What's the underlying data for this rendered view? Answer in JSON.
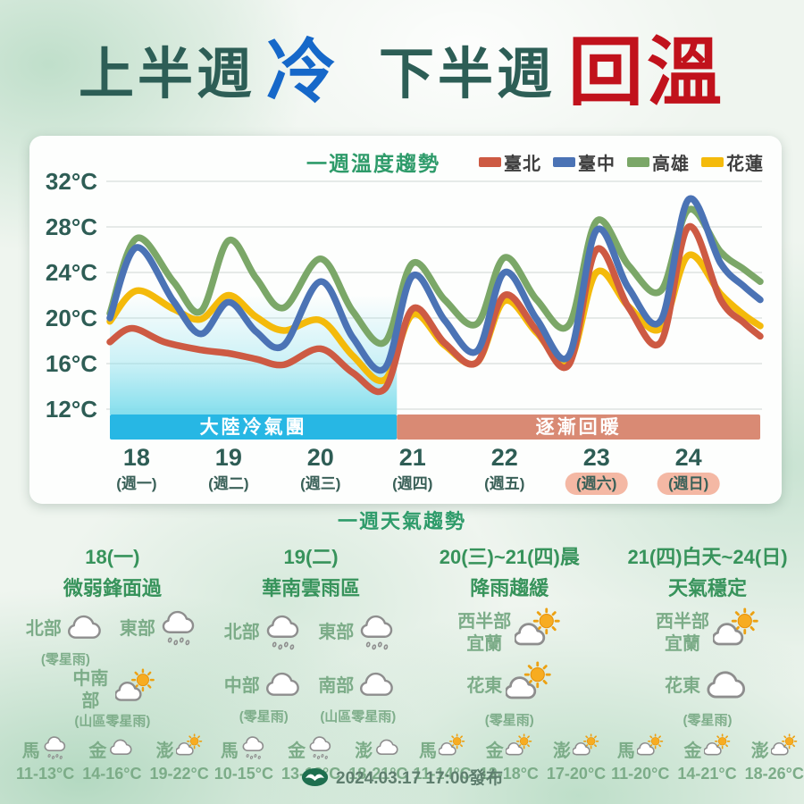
{
  "title": {
    "part1": "上半週",
    "cold": "冷",
    "part2": "下半週",
    "warm": "回溫"
  },
  "chart_data": {
    "type": "line",
    "title": "一週溫度趨勢",
    "ylabel": "°C",
    "ylim": [
      12,
      32
    ],
    "xlim": [
      17.71,
      24.78
    ],
    "y_ticks": [
      32,
      28,
      24,
      20,
      16,
      12
    ],
    "x_ticks": [
      {
        "t": 18,
        "day": "18",
        "week": "(週一)",
        "highlight": false
      },
      {
        "t": 19,
        "day": "19",
        "week": "(週二)",
        "highlight": false
      },
      {
        "t": 20,
        "day": "20",
        "week": "(週三)",
        "highlight": false
      },
      {
        "t": 21,
        "day": "21",
        "week": "(週四)",
        "highlight": false
      },
      {
        "t": 22,
        "day": "22",
        "week": "(週五)",
        "highlight": false
      },
      {
        "t": 23,
        "day": "23",
        "week": "(週六)",
        "highlight": true
      },
      {
        "t": 24,
        "day": "24",
        "week": "(週日)",
        "highlight": true
      }
    ],
    "bands": [
      {
        "label": "大陸冷氣團",
        "from": 17.71,
        "to": 20.83,
        "color": "#27B7E4"
      },
      {
        "label": "逐漸回暖",
        "from": 20.83,
        "to": 24.78,
        "color": "#D98A74"
      }
    ],
    "cold_fill": {
      "from": 17.71,
      "to": 20.83,
      "color": "#7FDDEC"
    },
    "highlight_pill_color": "#F4B8A4",
    "series": [
      {
        "name": "臺北",
        "color": "#CD5A43",
        "points": [
          [
            17.71,
            17.9
          ],
          [
            17.95,
            19.1
          ],
          [
            18.3,
            17.9
          ],
          [
            18.7,
            17.2
          ],
          [
            19.0,
            16.9
          ],
          [
            19.3,
            16.4
          ],
          [
            19.6,
            15.9
          ],
          [
            20.0,
            17.3
          ],
          [
            20.35,
            15.2
          ],
          [
            20.7,
            13.8
          ],
          [
            21.0,
            20.8
          ],
          [
            21.35,
            17.8
          ],
          [
            21.7,
            16.1
          ],
          [
            22.0,
            22.0
          ],
          [
            22.35,
            18.9
          ],
          [
            22.7,
            15.9
          ],
          [
            23.0,
            26.0
          ],
          [
            23.35,
            20.9
          ],
          [
            23.7,
            17.9
          ],
          [
            24.0,
            28.0
          ],
          [
            24.35,
            21.6
          ],
          [
            24.6,
            19.6
          ],
          [
            24.78,
            18.4
          ]
        ]
      },
      {
        "name": "臺中",
        "color": "#4B73B5",
        "points": [
          [
            17.71,
            20.0
          ],
          [
            18.0,
            26.2
          ],
          [
            18.4,
            21.5
          ],
          [
            18.7,
            18.6
          ],
          [
            19.0,
            21.4
          ],
          [
            19.3,
            18.8
          ],
          [
            19.6,
            17.6
          ],
          [
            20.0,
            23.2
          ],
          [
            20.35,
            18.3
          ],
          [
            20.7,
            15.6
          ],
          [
            21.0,
            23.7
          ],
          [
            21.35,
            19.8
          ],
          [
            21.7,
            17.1
          ],
          [
            22.0,
            24.0
          ],
          [
            22.35,
            19.9
          ],
          [
            22.7,
            16.7
          ],
          [
            23.0,
            27.7
          ],
          [
            23.35,
            22.6
          ],
          [
            23.7,
            19.8
          ],
          [
            24.0,
            30.4
          ],
          [
            24.35,
            24.8
          ],
          [
            24.6,
            22.8
          ],
          [
            24.78,
            21.6
          ]
        ]
      },
      {
        "name": "高雄",
        "color": "#7BA768",
        "points": [
          [
            17.71,
            20.4
          ],
          [
            18.0,
            27.0
          ],
          [
            18.4,
            23.2
          ],
          [
            18.7,
            20.6
          ],
          [
            19.0,
            26.8
          ],
          [
            19.3,
            23.5
          ],
          [
            19.6,
            20.9
          ],
          [
            20.0,
            25.2
          ],
          [
            20.35,
            20.6
          ],
          [
            20.7,
            17.9
          ],
          [
            21.0,
            24.8
          ],
          [
            21.35,
            21.6
          ],
          [
            21.7,
            19.5
          ],
          [
            22.0,
            25.3
          ],
          [
            22.35,
            21.6
          ],
          [
            22.7,
            19.4
          ],
          [
            23.0,
            28.5
          ],
          [
            23.35,
            24.6
          ],
          [
            23.7,
            22.4
          ],
          [
            24.0,
            29.5
          ],
          [
            24.35,
            25.8
          ],
          [
            24.6,
            24.3
          ],
          [
            24.78,
            23.2
          ]
        ]
      },
      {
        "name": "花蓮",
        "color": "#F4BA0B",
        "points": [
          [
            17.71,
            19.7
          ],
          [
            18.0,
            22.4
          ],
          [
            18.4,
            20.8
          ],
          [
            18.7,
            19.9
          ],
          [
            19.0,
            22.0
          ],
          [
            19.3,
            20.1
          ],
          [
            19.6,
            18.9
          ],
          [
            20.0,
            19.8
          ],
          [
            20.35,
            16.7
          ],
          [
            20.7,
            14.6
          ],
          [
            21.0,
            20.3
          ],
          [
            21.35,
            17.6
          ],
          [
            21.7,
            16.1
          ],
          [
            22.0,
            21.5
          ],
          [
            22.35,
            18.7
          ],
          [
            22.7,
            16.1
          ],
          [
            23.0,
            24.0
          ],
          [
            23.35,
            21.0
          ],
          [
            23.7,
            19.1
          ],
          [
            24.0,
            25.5
          ],
          [
            24.35,
            22.1
          ],
          [
            24.6,
            20.3
          ],
          [
            24.78,
            19.3
          ]
        ]
      }
    ],
    "paint_order": [
      3,
      0,
      2,
      1
    ]
  },
  "forecast": {
    "title": "一週天氣趨勢",
    "columns": [
      {
        "date": "18(一)",
        "desc": "微弱鋒面過",
        "layout": "grid",
        "regions": [
          {
            "name": "北部",
            "icon": "cloud",
            "note": "(零星雨)"
          },
          {
            "name": "東部",
            "icon": "rain",
            "note": ""
          },
          {
            "name": "中南部",
            "icon": "sun-cloud",
            "note": "(山區零星雨)"
          }
        ],
        "islands": [
          {
            "name": "馬",
            "icon": "rain",
            "temp": "11-13°C"
          },
          {
            "name": "金",
            "icon": "cloud",
            "temp": "14-16°C"
          },
          {
            "name": "澎",
            "icon": "sun-cloud",
            "temp": "19-22°C"
          }
        ]
      },
      {
        "date": "19(二)",
        "desc": "華南雲雨區",
        "layout": "grid",
        "regions": [
          {
            "name": "北部",
            "icon": "rain",
            "note": ""
          },
          {
            "name": "東部",
            "icon": "rain",
            "note": ""
          },
          {
            "name": "中部",
            "icon": "cloud",
            "note": "(零星雨)"
          },
          {
            "name": "南部",
            "icon": "cloud",
            "note": "(山區零星雨)"
          }
        ],
        "islands": [
          {
            "name": "馬",
            "icon": "rain",
            "temp": "10-15°C"
          },
          {
            "name": "金",
            "icon": "rain",
            "temp": "13-18°C"
          },
          {
            "name": "澎",
            "icon": "cloud",
            "temp": "18-21°C"
          }
        ]
      },
      {
        "date": "20(三)~21(四)晨",
        "desc": "降雨趨緩",
        "layout": "stack",
        "regions": [
          {
            "name": "西半部\n宜蘭",
            "icon": "sun-cloud",
            "note": ""
          },
          {
            "name": "花東",
            "icon": "sun-cloud",
            "note": "(零星雨)"
          }
        ],
        "islands": [
          {
            "name": "馬",
            "icon": "sun-cloud",
            "temp": "11-14°C"
          },
          {
            "name": "金",
            "icon": "sun-cloud",
            "temp": "12-18°C"
          },
          {
            "name": "澎",
            "icon": "sun-cloud",
            "temp": "17-20°C"
          }
        ]
      },
      {
        "date": "21(四)白天~24(日)",
        "desc": "天氣穩定",
        "layout": "stack",
        "regions": [
          {
            "name": "西半部\n宜蘭",
            "icon": "sun-cloud",
            "note": ""
          },
          {
            "name": "花東",
            "icon": "cloud",
            "note": "(零星雨)"
          }
        ],
        "islands": [
          {
            "name": "馬",
            "icon": "sun-cloud",
            "temp": "11-20°C"
          },
          {
            "name": "金",
            "icon": "sun-cloud",
            "temp": "14-21°C"
          },
          {
            "name": "澎",
            "icon": "sun-cloud",
            "temp": "18-26°C"
          }
        ]
      }
    ]
  },
  "footer": {
    "issued": "2024.03.17 17:00發布"
  }
}
